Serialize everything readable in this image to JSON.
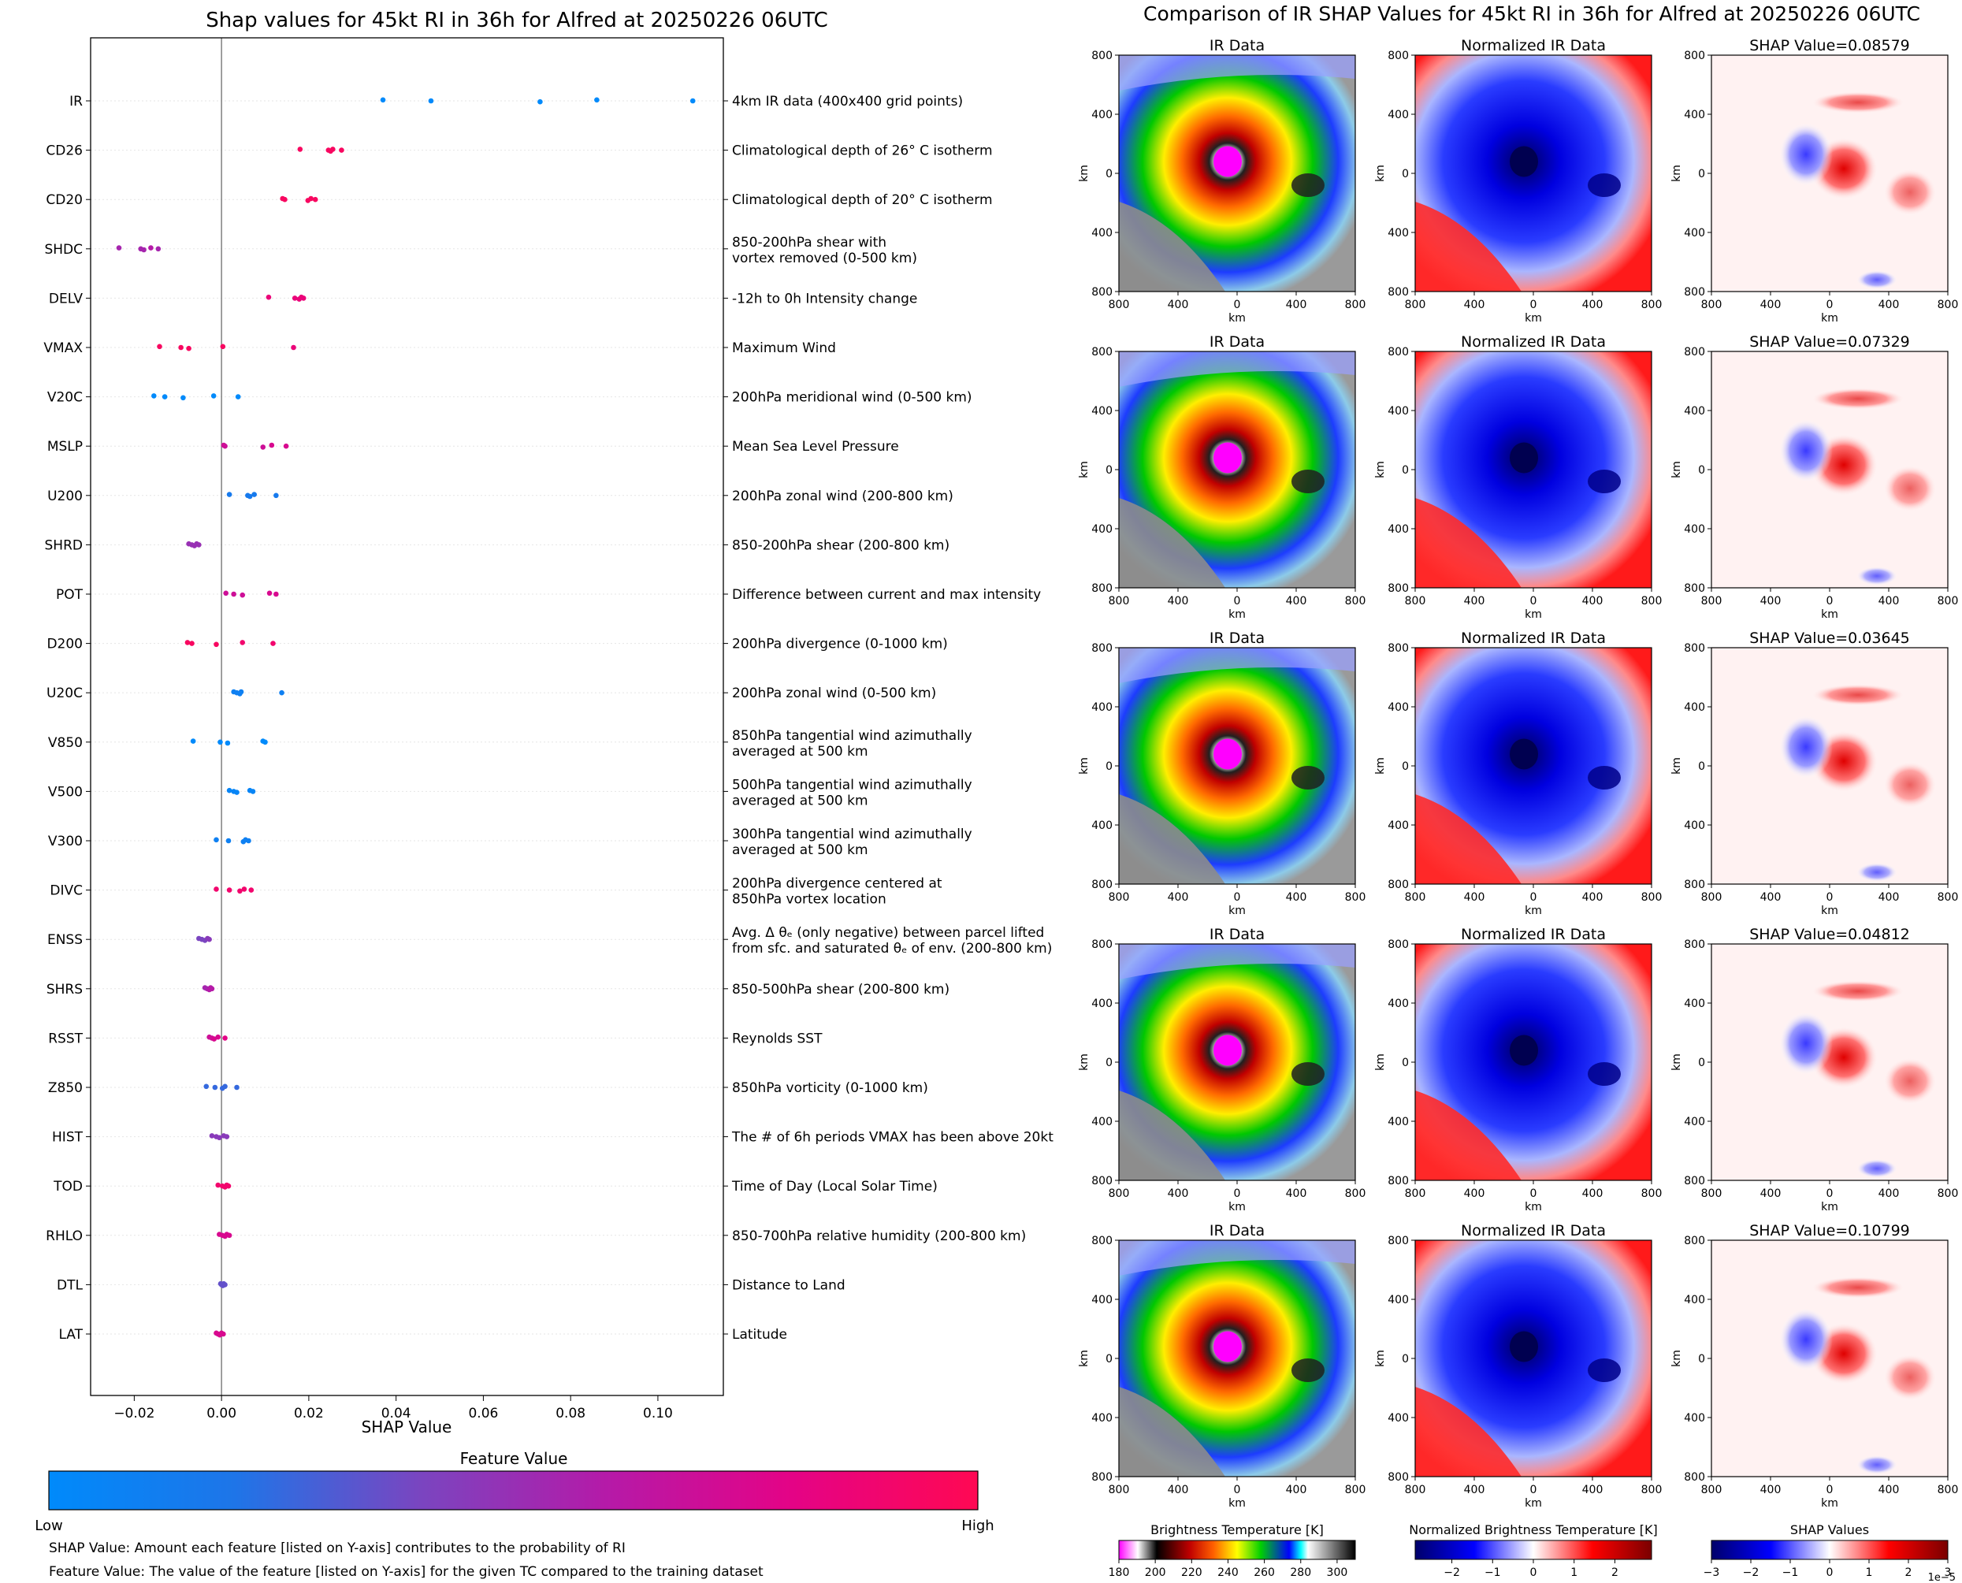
{
  "chart_data": [
    {
      "type": "scatter",
      "title": "Shap values for 45kt RI in 36h for Alfred at 20250226 06UTC",
      "xlabel": "SHAP Value",
      "xlim": [
        -0.03,
        0.115
      ],
      "xticks": [
        -0.02,
        0.0,
        0.02,
        0.04,
        0.06,
        0.08,
        0.1
      ],
      "xtick_labels": [
        "−0.02",
        "0.00",
        "0.02",
        "0.04",
        "0.06",
        "0.08",
        "0.10"
      ],
      "colorbar": {
        "title": "Feature Value",
        "low_label": "Low",
        "high_label": "High",
        "colors": [
          "#008afb",
          "#1e75e8",
          "#7a45c0",
          "#b51aa8",
          "#e40386",
          "#ff0853"
        ]
      },
      "features": [
        {
          "name": "IR",
          "desc": [
            "4km IR data (400x400 grid points)"
          ],
          "points": [
            [
              0.037,
              0.0
            ],
            [
              0.048,
              0.0
            ],
            [
              0.073,
              0.0
            ],
            [
              0.086,
              0.0
            ],
            [
              0.108,
              0.0
            ]
          ]
        },
        {
          "name": "CD26",
          "desc": [
            "Climatological depth of 26° C isotherm"
          ],
          "points": [
            [
              0.018,
              0.95
            ],
            [
              0.0245,
              0.95
            ],
            [
              0.025,
              0.95
            ],
            [
              0.0255,
              0.95
            ],
            [
              0.0275,
              0.95
            ]
          ]
        },
        {
          "name": "CD20",
          "desc": [
            "Climatological depth of 20° C isotherm"
          ],
          "points": [
            [
              0.014,
              0.95
            ],
            [
              0.0145,
              0.95
            ],
            [
              0.0198,
              0.95
            ],
            [
              0.0205,
              0.95
            ],
            [
              0.0215,
              0.95
            ]
          ]
        },
        {
          "name": "SHDC",
          "desc": [
            "850-200hPa shear with",
            "vortex removed (0-500 km)"
          ],
          "points": [
            [
              -0.0235,
              0.55
            ],
            [
              -0.0185,
              0.55
            ],
            [
              -0.0178,
              0.55
            ],
            [
              -0.0162,
              0.6
            ],
            [
              -0.0145,
              0.55
            ]
          ]
        },
        {
          "name": "DELV",
          "desc": [
            "-12h to 0h Intensity change"
          ],
          "points": [
            [
              0.0108,
              0.85
            ],
            [
              0.0168,
              0.85
            ],
            [
              0.0178,
              0.85
            ],
            [
              0.0183,
              0.85
            ],
            [
              0.0188,
              0.85
            ]
          ]
        },
        {
          "name": "VMAX",
          "desc": [
            "Maximum Wind"
          ],
          "points": [
            [
              -0.0142,
              0.95
            ],
            [
              -0.0093,
              0.95
            ],
            [
              -0.0075,
              0.95
            ],
            [
              0.0003,
              0.95
            ],
            [
              0.0165,
              0.85
            ]
          ]
        },
        {
          "name": "V20C",
          "desc": [
            "200hPa meridional wind (0-500 km)"
          ],
          "points": [
            [
              -0.0155,
              0.0
            ],
            [
              -0.013,
              0.0
            ],
            [
              -0.0088,
              0.0
            ],
            [
              -0.0018,
              0.0
            ],
            [
              0.0038,
              0.0
            ]
          ]
        },
        {
          "name": "MSLP",
          "desc": [
            "Mean Sea Level Pressure"
          ],
          "points": [
            [
              0.0005,
              0.7
            ],
            [
              0.0008,
              0.7
            ],
            [
              0.0095,
              0.7
            ],
            [
              0.0115,
              0.75
            ],
            [
              0.0148,
              0.75
            ]
          ]
        },
        {
          "name": "U200",
          "desc": [
            "200hPa zonal wind (200-800 km)"
          ],
          "points": [
            [
              0.0018,
              0.15
            ],
            [
              0.006,
              0.15
            ],
            [
              0.0065,
              0.15
            ],
            [
              0.0075,
              0.15
            ],
            [
              0.0125,
              0.15
            ]
          ]
        },
        {
          "name": "SHRD",
          "desc": [
            "850-200hPa shear (200-800 km)"
          ],
          "points": [
            [
              -0.0075,
              0.5
            ],
            [
              -0.0068,
              0.5
            ],
            [
              -0.0062,
              0.5
            ],
            [
              -0.0057,
              0.5
            ],
            [
              -0.0052,
              0.5
            ]
          ]
        },
        {
          "name": "POT",
          "desc": [
            "Difference between current and max intensity"
          ],
          "points": [
            [
              0.001,
              0.7
            ],
            [
              0.0028,
              0.7
            ],
            [
              0.0048,
              0.7
            ],
            [
              0.011,
              0.75
            ],
            [
              0.0125,
              0.75
            ]
          ]
        },
        {
          "name": "D200",
          "desc": [
            "200hPa divergence (0-1000 km)"
          ],
          "points": [
            [
              -0.0078,
              0.95
            ],
            [
              -0.0068,
              0.95
            ],
            [
              -0.0012,
              0.95
            ],
            [
              0.0048,
              0.9
            ],
            [
              0.0118,
              0.9
            ]
          ]
        },
        {
          "name": "U20C",
          "desc": [
            "200hPa zonal wind (0-500 km)"
          ],
          "points": [
            [
              0.0028,
              0.1
            ],
            [
              0.0035,
              0.1
            ],
            [
              0.0042,
              0.1
            ],
            [
              0.0045,
              0.1
            ],
            [
              0.0138,
              0.1
            ]
          ]
        },
        {
          "name": "V850",
          "desc": [
            "850hPa tangential wind azimuthally",
            "averaged at 500 km"
          ],
          "points": [
            [
              -0.0065,
              0.0
            ],
            [
              -0.0003,
              0.0
            ],
            [
              0.0014,
              0.0
            ],
            [
              0.0095,
              0.0
            ],
            [
              0.01,
              0.0
            ]
          ]
        },
        {
          "name": "V500",
          "desc": [
            "500hPa tangential wind azimuthally",
            "averaged at 500 km"
          ],
          "points": [
            [
              0.0018,
              0.05
            ],
            [
              0.0028,
              0.05
            ],
            [
              0.0035,
              0.05
            ],
            [
              0.0065,
              0.05
            ],
            [
              0.0072,
              0.05
            ]
          ]
        },
        {
          "name": "V300",
          "desc": [
            "300hPa tangential wind azimuthally",
            "averaged at 500 km"
          ],
          "points": [
            [
              -0.0012,
              0.1
            ],
            [
              0.0016,
              0.1
            ],
            [
              0.005,
              0.1
            ],
            [
              0.0055,
              0.1
            ],
            [
              0.0062,
              0.1
            ]
          ]
        },
        {
          "name": "DIVC",
          "desc": [
            "200hPa divergence centered at",
            "850hPa vortex location"
          ],
          "points": [
            [
              -0.0012,
              0.9
            ],
            [
              0.0018,
              0.9
            ],
            [
              0.0042,
              0.9
            ],
            [
              0.0052,
              0.9
            ],
            [
              0.0068,
              0.9
            ]
          ]
        },
        {
          "name": "ENSS",
          "desc": [
            "Avg. Δ θₑ (only negative) between parcel lifted",
            "from sfc. and saturated θₑ of env. (200-800 km)"
          ],
          "points": [
            [
              -0.0052,
              0.4
            ],
            [
              -0.0045,
              0.4
            ],
            [
              -0.0038,
              0.4
            ],
            [
              -0.0032,
              0.45
            ],
            [
              -0.0028,
              0.45
            ]
          ]
        },
        {
          "name": "SHRS",
          "desc": [
            "850-500hPa shear (200-800 km)"
          ],
          "points": [
            [
              -0.0038,
              0.55
            ],
            [
              -0.0033,
              0.55
            ],
            [
              -0.0028,
              0.6
            ],
            [
              -0.0025,
              0.6
            ],
            [
              -0.0022,
              0.6
            ]
          ]
        },
        {
          "name": "RSST",
          "desc": [
            "Reynolds SST"
          ],
          "points": [
            [
              -0.0028,
              0.7
            ],
            [
              -0.0022,
              0.7
            ],
            [
              -0.0017,
              0.75
            ],
            [
              -0.0008,
              0.75
            ],
            [
              0.0008,
              0.8
            ]
          ]
        },
        {
          "name": "Z850",
          "desc": [
            "850hPa vorticity (0-1000 km)"
          ],
          "points": [
            [
              -0.0035,
              0.25
            ],
            [
              -0.0015,
              0.25
            ],
            [
              0.0002,
              0.25
            ],
            [
              0.0008,
              0.25
            ],
            [
              0.0035,
              0.25
            ]
          ]
        },
        {
          "name": "HIST",
          "desc": [
            "The # of 6h periods VMAX has been above 20kt"
          ],
          "points": [
            [
              -0.0022,
              0.45
            ],
            [
              -0.0012,
              0.45
            ],
            [
              -0.0005,
              0.45
            ],
            [
              0.0005,
              0.45
            ],
            [
              0.0012,
              0.45
            ]
          ]
        },
        {
          "name": "TOD",
          "desc": [
            "Time of Day (Local Solar Time)"
          ],
          "points": [
            [
              -0.0008,
              0.9
            ],
            [
              0.0002,
              0.9
            ],
            [
              0.0008,
              0.9
            ],
            [
              0.0012,
              0.9
            ],
            [
              0.0016,
              0.9
            ]
          ]
        },
        {
          "name": "RHLO",
          "desc": [
            "850-700hPa relative humidity (200-800 km)"
          ],
          "points": [
            [
              -0.0005,
              0.75
            ],
            [
              0.0002,
              0.75
            ],
            [
              0.0008,
              0.75
            ],
            [
              0.0012,
              0.75
            ],
            [
              0.0018,
              0.75
            ]
          ]
        },
        {
          "name": "DTL",
          "desc": [
            "Distance to Land"
          ],
          "points": [
            [
              -0.0002,
              0.35
            ],
            [
              0.0,
              0.35
            ],
            [
              0.0003,
              0.35
            ],
            [
              0.0005,
              0.35
            ],
            [
              0.0008,
              0.35
            ]
          ]
        },
        {
          "name": "LAT",
          "desc": [
            "Latitude"
          ],
          "points": [
            [
              -0.0012,
              0.75
            ],
            [
              -0.0008,
              0.75
            ],
            [
              -0.0004,
              0.75
            ],
            [
              0.0,
              0.75
            ],
            [
              0.0004,
              0.75
            ]
          ]
        }
      ]
    },
    {
      "type": "heatmap",
      "title": "Comparison of IR SHAP Values for 45kt RI in 36h for Alfred at 20250226 06UTC",
      "axis_label": "km",
      "ticks": [
        800,
        400,
        0,
        400,
        800
      ],
      "panel_titles": [
        "IR Data",
        "Normalized IR Data"
      ],
      "shap_values": [
        "SHAP Value=0.08579",
        "SHAP Value=0.07329",
        "SHAP Value=0.03645",
        "SHAP Value=0.04812",
        "SHAP Value=0.10799"
      ],
      "colorbars": [
        {
          "label": "Brightness Temperature [K]",
          "ticks": [
            "180",
            "200",
            "220",
            "240",
            "260",
            "280",
            "300"
          ],
          "range": [
            180,
            310
          ],
          "stops": [
            "#ff00ff",
            "#ffffff",
            "#000000",
            "#c00000",
            "#ff6000",
            "#ffff00",
            "#00d000",
            "#0000ff",
            "#00ffff",
            "#ffffff",
            "#000000"
          ]
        },
        {
          "label": "Normalized Brightness Temperature [K]",
          "ticks": [
            "−2",
            "−1",
            "0",
            "1",
            "2"
          ],
          "range": [
            -2.9,
            2.9
          ],
          "stops": [
            "#00006a",
            "#0000ff",
            "#ffffff",
            "#ff0000",
            "#7a0000"
          ]
        },
        {
          "label": "SHAP Values",
          "ticks": [
            "−3",
            "−2",
            "−1",
            "0",
            "1",
            "2",
            "3"
          ],
          "range": [
            -3,
            3
          ],
          "offset": "1e−5",
          "stops": [
            "#00006a",
            "#0000ff",
            "#ffffff",
            "#ff0000",
            "#7a0000"
          ]
        }
      ]
    }
  ],
  "notes": {
    "shap": "SHAP Value: Amount each feature [listed on Y-axis] contributes to the probability of RI",
    "feature": "Feature Value: The value of the feature [listed on Y-axis] for the given TC compared to the training dataset"
  }
}
